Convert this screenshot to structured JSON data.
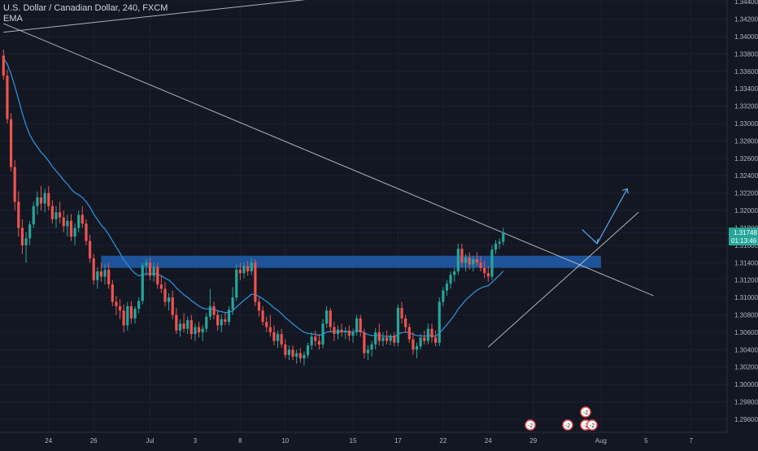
{
  "header": {
    "symbol_title": "U.S. Dollar / Canadian Dollar, 240, FXCM",
    "indicator": "EMA"
  },
  "price_marker": {
    "price": "1.31748",
    "countdown": "01:13:46"
  },
  "colors": {
    "background": "#131722",
    "up": "#26a69a",
    "down": "#ef5350",
    "ema": "#2e8ed7",
    "zone": "#1f5aa6",
    "trendline": "#c8cbd3",
    "arrow": "#5aa7e6",
    "axis_text": "#b2b5be"
  },
  "chart_data": {
    "type": "candlestick",
    "y_axis": {
      "min": 1.2945,
      "max": 1.3442,
      "tick_labels": [
        "1.34400",
        "1.34200",
        "1.34000",
        "1.33800",
        "1.33600",
        "1.33400",
        "1.33200",
        "1.33000",
        "1.32800",
        "1.32600",
        "1.32400",
        "1.32200",
        "1.32000",
        "1.31800",
        "1.31600",
        "1.31400",
        "1.31200",
        "1.31000",
        "1.30800",
        "1.30600",
        "1.30400",
        "1.30200",
        "1.30000",
        "1.29800",
        "1.29600"
      ],
      "tick_values": [
        1.344,
        1.342,
        1.34,
        1.338,
        1.336,
        1.334,
        1.332,
        1.33,
        1.328,
        1.326,
        1.324,
        1.322,
        1.32,
        1.318,
        1.316,
        1.314,
        1.312,
        1.31,
        1.308,
        1.306,
        1.304,
        1.302,
        1.3,
        1.298,
        1.296
      ]
    },
    "x_axis": {
      "tick_labels": [
        "24",
        "26",
        "Jul",
        "3",
        "8",
        "10",
        "15",
        "17",
        "22",
        "24",
        "29",
        "Aug",
        "5",
        "7"
      ],
      "tick_positions_bars": [
        12,
        24,
        39,
        51,
        63,
        75,
        93,
        105,
        117,
        129,
        141,
        159,
        171,
        183
      ]
    },
    "bars_visible": 160,
    "candles": [
      [
        1.3378,
        1.3385,
        1.335,
        1.3355
      ],
      [
        1.3355,
        1.3362,
        1.33,
        1.3305
      ],
      [
        1.3305,
        1.3312,
        1.3245,
        1.325
      ],
      [
        1.325,
        1.3258,
        1.32,
        1.321
      ],
      [
        1.321,
        1.3222,
        1.317,
        1.318
      ],
      [
        1.318,
        1.319,
        1.315,
        1.316
      ],
      [
        1.316,
        1.3175,
        1.314,
        1.3168
      ],
      [
        1.3168,
        1.3188,
        1.316,
        1.3184
      ],
      [
        1.3184,
        1.321,
        1.318,
        1.3205
      ],
      [
        1.3205,
        1.3222,
        1.3195,
        1.3215
      ],
      [
        1.3215,
        1.3228,
        1.32,
        1.3208
      ],
      [
        1.3208,
        1.3225,
        1.3198,
        1.322
      ],
      [
        1.322,
        1.3228,
        1.32,
        1.3205
      ],
      [
        1.3205,
        1.3212,
        1.3185,
        1.319
      ],
      [
        1.319,
        1.3205,
        1.318,
        1.3198
      ],
      [
        1.3198,
        1.321,
        1.3185,
        1.3192
      ],
      [
        1.3192,
        1.32,
        1.3175,
        1.3182
      ],
      [
        1.3182,
        1.3195,
        1.317,
        1.3188
      ],
      [
        1.3188,
        1.3196,
        1.3165,
        1.317
      ],
      [
        1.317,
        1.3185,
        1.316,
        1.318
      ],
      [
        1.318,
        1.32,
        1.3175,
        1.3195
      ],
      [
        1.3195,
        1.3205,
        1.318,
        1.3185
      ],
      [
        1.3185,
        1.319,
        1.316,
        1.3165
      ],
      [
        1.3165,
        1.3172,
        1.314,
        1.3145
      ],
      [
        1.3145,
        1.315,
        1.3115,
        1.312
      ],
      [
        1.312,
        1.3135,
        1.311,
        1.313
      ],
      [
        1.313,
        1.314,
        1.3118,
        1.3124
      ],
      [
        1.3124,
        1.3138,
        1.3115,
        1.3132
      ],
      [
        1.3132,
        1.314,
        1.311,
        1.3115
      ],
      [
        1.3115,
        1.312,
        1.309,
        1.3095
      ],
      [
        1.3095,
        1.3102,
        1.308,
        1.309
      ],
      [
        1.309,
        1.3098,
        1.3075,
        1.3085
      ],
      [
        1.3085,
        1.3092,
        1.306,
        1.3068
      ],
      [
        1.3068,
        1.3095,
        1.3062,
        1.309
      ],
      [
        1.309,
        1.3096,
        1.307,
        1.3076
      ],
      [
        1.3076,
        1.309,
        1.307,
        1.3087
      ],
      [
        1.3087,
        1.31,
        1.3082,
        1.3096
      ],
      [
        1.3096,
        1.314,
        1.3092,
        1.3137
      ],
      [
        1.3137,
        1.3145,
        1.3125,
        1.314
      ],
      [
        1.314,
        1.3146,
        1.312,
        1.3125
      ],
      [
        1.3125,
        1.314,
        1.3118,
        1.3135
      ],
      [
        1.3135,
        1.314,
        1.311,
        1.3115
      ],
      [
        1.3115,
        1.3125,
        1.3105,
        1.311
      ],
      [
        1.311,
        1.3118,
        1.309,
        1.3095
      ],
      [
        1.3095,
        1.3105,
        1.3085,
        1.31
      ],
      [
        1.31,
        1.3108,
        1.3075,
        1.308
      ],
      [
        1.308,
        1.3088,
        1.3058,
        1.3062
      ],
      [
        1.3062,
        1.3075,
        1.3055,
        1.307
      ],
      [
        1.307,
        1.3082,
        1.306,
        1.3064
      ],
      [
        1.3064,
        1.3078,
        1.3058,
        1.3074
      ],
      [
        1.3074,
        1.308,
        1.3052,
        1.3058
      ],
      [
        1.3058,
        1.307,
        1.305,
        1.3066
      ],
      [
        1.3066,
        1.3072,
        1.3054,
        1.306
      ],
      [
        1.306,
        1.3068,
        1.305,
        1.3064
      ],
      [
        1.3064,
        1.3082,
        1.306,
        1.3078
      ],
      [
        1.3078,
        1.311,
        1.3074,
        1.309
      ],
      [
        1.309,
        1.3095,
        1.3075,
        1.308
      ],
      [
        1.308,
        1.3085,
        1.3062,
        1.3068
      ],
      [
        1.3068,
        1.308,
        1.306,
        1.3075
      ],
      [
        1.3075,
        1.3082,
        1.3068,
        1.3072
      ],
      [
        1.3072,
        1.309,
        1.3068,
        1.3086
      ],
      [
        1.3086,
        1.3112,
        1.308,
        1.31
      ],
      [
        1.31,
        1.3138,
        1.3096,
        1.3132
      ],
      [
        1.3132,
        1.314,
        1.312,
        1.3128
      ],
      [
        1.3128,
        1.314,
        1.3122,
        1.3136
      ],
      [
        1.3136,
        1.3142,
        1.3125,
        1.313
      ],
      [
        1.313,
        1.3145,
        1.3126,
        1.314
      ],
      [
        1.314,
        1.3144,
        1.309,
        1.3095
      ],
      [
        1.3095,
        1.31,
        1.3078,
        1.3085
      ],
      [
        1.3085,
        1.309,
        1.3068,
        1.3072
      ],
      [
        1.3072,
        1.3078,
        1.306,
        1.3066
      ],
      [
        1.3066,
        1.308,
        1.3055,
        1.306
      ],
      [
        1.306,
        1.3068,
        1.3045,
        1.305
      ],
      [
        1.305,
        1.3062,
        1.3042,
        1.3058
      ],
      [
        1.3058,
        1.3064,
        1.3042,
        1.3046
      ],
      [
        1.3046,
        1.3052,
        1.303,
        1.3034
      ],
      [
        1.3034,
        1.3045,
        1.3028,
        1.304
      ],
      [
        1.304,
        1.3045,
        1.3028,
        1.3032
      ],
      [
        1.3032,
        1.304,
        1.3024,
        1.3036
      ],
      [
        1.3036,
        1.3042,
        1.3025,
        1.303
      ],
      [
        1.303,
        1.3038,
        1.3022,
        1.3034
      ],
      [
        1.3034,
        1.3048,
        1.303,
        1.3045
      ],
      [
        1.3045,
        1.306,
        1.304,
        1.3055
      ],
      [
        1.3055,
        1.3062,
        1.3044,
        1.305
      ],
      [
        1.305,
        1.3058,
        1.304,
        1.3046
      ],
      [
        1.3046,
        1.3075,
        1.3042,
        1.307
      ],
      [
        1.307,
        1.309,
        1.3065,
        1.3085
      ],
      [
        1.3085,
        1.3088,
        1.306,
        1.3066
      ],
      [
        1.3066,
        1.3072,
        1.305,
        1.3058
      ],
      [
        1.3058,
        1.3068,
        1.3052,
        1.3063
      ],
      [
        1.3063,
        1.307,
        1.3055,
        1.306
      ],
      [
        1.306,
        1.3066,
        1.3052,
        1.3062
      ],
      [
        1.3062,
        1.3068,
        1.305,
        1.3056
      ],
      [
        1.3056,
        1.3064,
        1.3048,
        1.306
      ],
      [
        1.306,
        1.308,
        1.3056,
        1.3076
      ],
      [
        1.3076,
        1.308,
        1.3055,
        1.306
      ],
      [
        1.306,
        1.3064,
        1.303,
        1.3036
      ],
      [
        1.3036,
        1.3045,
        1.3028,
        1.304
      ],
      [
        1.304,
        1.305,
        1.3032,
        1.3046
      ],
      [
        1.3046,
        1.3065,
        1.304,
        1.306
      ],
      [
        1.306,
        1.307,
        1.3045,
        1.305
      ],
      [
        1.305,
        1.306,
        1.3044,
        1.3054
      ],
      [
        1.3054,
        1.3062,
        1.3046,
        1.305
      ],
      [
        1.305,
        1.3058,
        1.3045,
        1.3056
      ],
      [
        1.3056,
        1.306,
        1.3044,
        1.3048
      ],
      [
        1.3048,
        1.3092,
        1.3044,
        1.3088
      ],
      [
        1.3088,
        1.3095,
        1.307,
        1.3076
      ],
      [
        1.3076,
        1.308,
        1.306,
        1.3066
      ],
      [
        1.3066,
        1.307,
        1.3048,
        1.3052
      ],
      [
        1.3052,
        1.306,
        1.3034,
        1.304
      ],
      [
        1.304,
        1.3048,
        1.303,
        1.3044
      ],
      [
        1.3044,
        1.3058,
        1.304,
        1.3054
      ],
      [
        1.3054,
        1.3062,
        1.3046,
        1.305
      ],
      [
        1.305,
        1.307,
        1.3046,
        1.3064
      ],
      [
        1.3064,
        1.307,
        1.3048,
        1.3054
      ],
      [
        1.3054,
        1.3062,
        1.3044,
        1.3048
      ],
      [
        1.3048,
        1.31,
        1.3044,
        1.3095
      ],
      [
        1.3095,
        1.3112,
        1.309,
        1.3108
      ],
      [
        1.3108,
        1.312,
        1.3102,
        1.3116
      ],
      [
        1.3116,
        1.313,
        1.311,
        1.3126
      ],
      [
        1.3126,
        1.3134,
        1.3118,
        1.313
      ],
      [
        1.313,
        1.3162,
        1.3126,
        1.3156
      ],
      [
        1.3156,
        1.3162,
        1.3135,
        1.314
      ],
      [
        1.314,
        1.315,
        1.313,
        1.3146
      ],
      [
        1.3146,
        1.3152,
        1.3132,
        1.3138
      ],
      [
        1.3138,
        1.3148,
        1.313,
        1.3144
      ],
      [
        1.3144,
        1.3152,
        1.3136,
        1.314
      ],
      [
        1.314,
        1.3148,
        1.313,
        1.3134
      ],
      [
        1.3134,
        1.3142,
        1.3122,
        1.3128
      ],
      [
        1.3128,
        1.3136,
        1.3118,
        1.3124
      ],
      [
        1.3124,
        1.316,
        1.312,
        1.3155
      ],
      [
        1.3155,
        1.3166,
        1.315,
        1.3162
      ],
      [
        1.3162,
        1.3168,
        1.3156,
        1.3164
      ],
      [
        1.3164,
        1.318,
        1.316,
        1.3175
      ]
    ],
    "ema_length_note": "",
    "zone": {
      "top": 1.3148,
      "bottom": 1.3134,
      "from_bar": 26,
      "to_bar": 159
    },
    "trendlines": [
      {
        "x1_bar": 0,
        "y1": 1.3415,
        "x2_bar": 173,
        "y2": 1.3102
      },
      {
        "x1_bar": 0,
        "y1": 1.3405,
        "x2_bar": 88,
        "y2": 1.3446
      },
      {
        "x1_bar": 129,
        "y1": 1.3043,
        "x2_bar": 169,
        "y2": 1.3198
      }
    ],
    "projection_arrow": [
      {
        "bar": 154,
        "price": 1.3178
      },
      {
        "bar": 158,
        "price": 1.3162
      },
      {
        "bar": 166,
        "price": 1.3225
      }
    ],
    "event_badges": [
      "-2",
      "-2",
      "-2",
      "-2",
      "-2"
    ]
  }
}
